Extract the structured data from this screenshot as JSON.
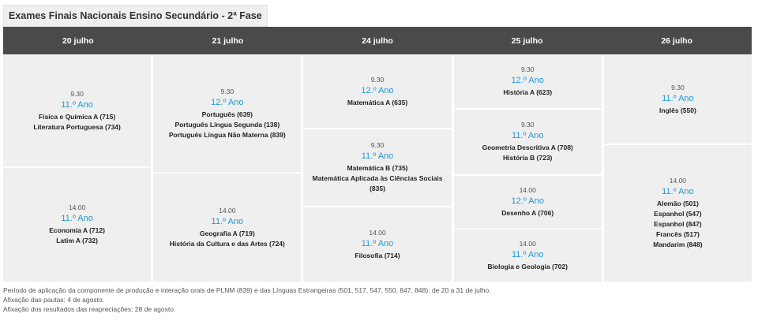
{
  "title": "Exames Finais Nacionais Ensino Secundário - 2ª Fase",
  "days": [
    {
      "label": "20 julho",
      "slots": [
        {
          "time": "9.30",
          "year": "11.º Ano",
          "exams": [
            "Física e Química A (715)",
            "Literatura Portuguesa (734)"
          ]
        },
        {
          "time": "14.00",
          "year": "11.º Ano",
          "exams": [
            "Economia A (712)",
            "Latim A (732)"
          ]
        }
      ]
    },
    {
      "label": "21 julho",
      "slots": [
        {
          "time": "9.30",
          "year": "12.º Ano",
          "exams": [
            "Português (639)",
            "Português Língua Segunda (138)",
            "Português Língua Não Materna (839)"
          ]
        },
        {
          "time": "14.00",
          "year": "11.º Ano",
          "exams": [
            "Geografia A (719)",
            "História da Cultura e das Artes (724)"
          ]
        }
      ]
    },
    {
      "label": "24 julho",
      "slots": [
        {
          "time": "9.30",
          "year": "12.º Ano",
          "exams": [
            "Matemática A (635)"
          ]
        },
        {
          "time": "9.30",
          "year": "11.º Ano",
          "exams": [
            "Matemática B (735)",
            "Matemática Aplicada às Ciências Sociais",
            "(835)"
          ]
        },
        {
          "time": "14.00",
          "year": "11.º Ano",
          "exams": [
            "Filosofia (714)"
          ]
        }
      ]
    },
    {
      "label": "25 julho",
      "slots": [
        {
          "time": "9.30",
          "year": "12.º Ano",
          "exams": [
            "História A (623)"
          ]
        },
        {
          "time": "9.30",
          "year": "11.º Ano",
          "exams": [
            "Geometria Descritiva A (708)",
            "História B (723)"
          ]
        },
        {
          "time": "14.00",
          "year": "12.º Ano",
          "exams": [
            "Desenho A (706)"
          ]
        },
        {
          "time": "14.00",
          "year": "11.º Ano",
          "exams": [
            "Biologia e Geologia (702)"
          ]
        }
      ]
    },
    {
      "label": "26 julho",
      "slots": [
        {
          "time": "9.30",
          "year": "11.º Ano",
          "exams": [
            "Inglês (550)"
          ]
        },
        {
          "time": "14.00",
          "year": "11.º Ano",
          "exams": [
            "Alemão (501)",
            "Espanhol (547)",
            "Espanhol (847)",
            "Francês (517)",
            "Mandarim (848)"
          ]
        }
      ]
    }
  ],
  "notes": [
    "Período de aplicação da componente de produção e interação orais de PLNM (839) e das Línguas Estrangeiras (501, 517, 547, 550, 847, 848): de 20 a 31 de julho.",
    "Afixação das pautas: 4 de agosto.",
    "Afixação dos resultados das reapreciações: 28 de agosto."
  ]
}
